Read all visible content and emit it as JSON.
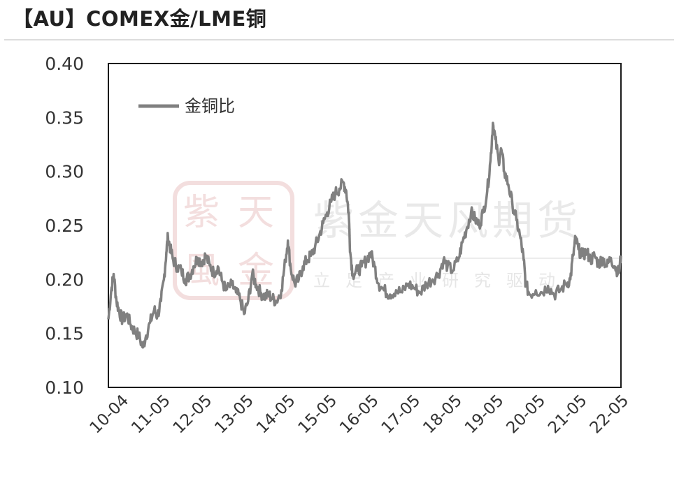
{
  "title": "【AU】COMEX金/LME铜",
  "watermark": {
    "main": "紫金天风期货",
    "sub": "立足产业研究驱动",
    "seal": [
      "紫",
      "天",
      "風",
      "金"
    ]
  },
  "chart_data": {
    "type": "line",
    "title": "",
    "xlabel": "",
    "ylabel": "",
    "ylim": [
      0.1,
      0.4
    ],
    "yticks": [
      "0.40",
      "0.35",
      "0.30",
      "0.25",
      "0.20",
      "0.15",
      "0.10"
    ],
    "xticks": [
      "10-04",
      "11-05",
      "12-05",
      "13-05",
      "14-05",
      "15-05",
      "16-05",
      "17-05",
      "18-05",
      "19-05",
      "20-05",
      "21-05",
      "22-05"
    ],
    "xlim": [
      2010.25,
      2022.9
    ],
    "grid": false,
    "legend": "top-left",
    "series": [
      {
        "name": "金铜比",
        "color": "#808080",
        "points": [
          [
            2010.25,
            0.163
          ],
          [
            2010.32,
            0.19
          ],
          [
            2010.38,
            0.205
          ],
          [
            2010.45,
            0.18
          ],
          [
            2010.52,
            0.17
          ],
          [
            2010.6,
            0.162
          ],
          [
            2010.7,
            0.168
          ],
          [
            2010.8,
            0.158
          ],
          [
            2010.9,
            0.152
          ],
          [
            2011.0,
            0.148
          ],
          [
            2011.1,
            0.137
          ],
          [
            2011.18,
            0.148
          ],
          [
            2011.28,
            0.16
          ],
          [
            2011.38,
            0.172
          ],
          [
            2011.46,
            0.166
          ],
          [
            2011.55,
            0.18
          ],
          [
            2011.62,
            0.2
          ],
          [
            2011.68,
            0.225
          ],
          [
            2011.72,
            0.24
          ],
          [
            2011.78,
            0.228
          ],
          [
            2011.85,
            0.218
          ],
          [
            2011.95,
            0.212
          ],
          [
            2012.05,
            0.208
          ],
          [
            2012.15,
            0.2
          ],
          [
            2012.25,
            0.203
          ],
          [
            2012.35,
            0.212
          ],
          [
            2012.45,
            0.22
          ],
          [
            2012.55,
            0.216
          ],
          [
            2012.65,
            0.222
          ],
          [
            2012.75,
            0.213
          ],
          [
            2012.85,
            0.206
          ],
          [
            2012.95,
            0.212
          ],
          [
            2013.05,
            0.199
          ],
          [
            2013.15,
            0.19
          ],
          [
            2013.3,
            0.195
          ],
          [
            2013.4,
            0.188
          ],
          [
            2013.5,
            0.182
          ],
          [
            2013.6,
            0.168
          ],
          [
            2013.7,
            0.18
          ],
          [
            2013.8,
            0.205
          ],
          [
            2013.9,
            0.195
          ],
          [
            2014.0,
            0.188
          ],
          [
            2014.1,
            0.184
          ],
          [
            2014.2,
            0.186
          ],
          [
            2014.3,
            0.182
          ],
          [
            2014.4,
            0.18
          ],
          [
            2014.52,
            0.19
          ],
          [
            2014.62,
            0.218
          ],
          [
            2014.68,
            0.236
          ],
          [
            2014.75,
            0.21
          ],
          [
            2014.85,
            0.196
          ],
          [
            2014.95,
            0.2
          ],
          [
            2015.05,
            0.212
          ],
          [
            2015.15,
            0.218
          ],
          [
            2015.25,
            0.222
          ],
          [
            2015.35,
            0.23
          ],
          [
            2015.45,
            0.24
          ],
          [
            2015.55,
            0.252
          ],
          [
            2015.65,
            0.262
          ],
          [
            2015.75,
            0.272
          ],
          [
            2015.85,
            0.28
          ],
          [
            2015.95,
            0.284
          ],
          [
            2016.05,
            0.29
          ],
          [
            2016.12,
            0.282
          ],
          [
            2016.18,
            0.262
          ],
          [
            2016.22,
            0.225
          ],
          [
            2016.28,
            0.205
          ],
          [
            2016.4,
            0.208
          ],
          [
            2016.5,
            0.212
          ],
          [
            2016.62,
            0.218
          ],
          [
            2016.72,
            0.225
          ],
          [
            2016.82,
            0.212
          ],
          [
            2016.92,
            0.196
          ],
          [
            2017.05,
            0.19
          ],
          [
            2017.2,
            0.186
          ],
          [
            2017.35,
            0.19
          ],
          [
            2017.5,
            0.188
          ],
          [
            2017.65,
            0.196
          ],
          [
            2017.8,
            0.192
          ],
          [
            2017.95,
            0.188
          ],
          [
            2018.1,
            0.196
          ],
          [
            2018.25,
            0.2
          ],
          [
            2018.4,
            0.205
          ],
          [
            2018.52,
            0.218
          ],
          [
            2018.62,
            0.212
          ],
          [
            2018.75,
            0.208
          ],
          [
            2018.9,
            0.22
          ],
          [
            2019.0,
            0.236
          ],
          [
            2019.1,
            0.248
          ],
          [
            2019.2,
            0.262
          ],
          [
            2019.3,
            0.256
          ],
          [
            2019.4,
            0.25
          ],
          [
            2019.5,
            0.262
          ],
          [
            2019.6,
            0.282
          ],
          [
            2019.68,
            0.31
          ],
          [
            2019.74,
            0.345
          ],
          [
            2019.8,
            0.33
          ],
          [
            2019.88,
            0.31
          ],
          [
            2019.95,
            0.32
          ],
          [
            2020.02,
            0.3
          ],
          [
            2020.12,
            0.288
          ],
          [
            2020.22,
            0.27
          ],
          [
            2020.32,
            0.255
          ],
          [
            2020.42,
            0.238
          ],
          [
            2020.5,
            0.218
          ],
          [
            2020.55,
            0.195
          ],
          [
            2020.65,
            0.186
          ],
          [
            2020.8,
            0.19
          ],
          [
            2020.95,
            0.188
          ],
          [
            2021.1,
            0.194
          ],
          [
            2021.25,
            0.186
          ],
          [
            2021.4,
            0.19
          ],
          [
            2021.55,
            0.196
          ],
          [
            2021.65,
            0.2
          ],
          [
            2021.72,
            0.222
          ],
          [
            2021.78,
            0.238
          ],
          [
            2021.85,
            0.228
          ],
          [
            2021.95,
            0.222
          ],
          [
            2022.05,
            0.226
          ],
          [
            2022.15,
            0.218
          ],
          [
            2022.25,
            0.222
          ],
          [
            2022.35,
            0.214
          ],
          [
            2022.45,
            0.22
          ],
          [
            2022.55,
            0.212
          ],
          [
            2022.65,
            0.22
          ],
          [
            2022.75,
            0.212
          ],
          [
            2022.85,
            0.206
          ],
          [
            2022.9,
            0.222
          ]
        ]
      }
    ]
  }
}
